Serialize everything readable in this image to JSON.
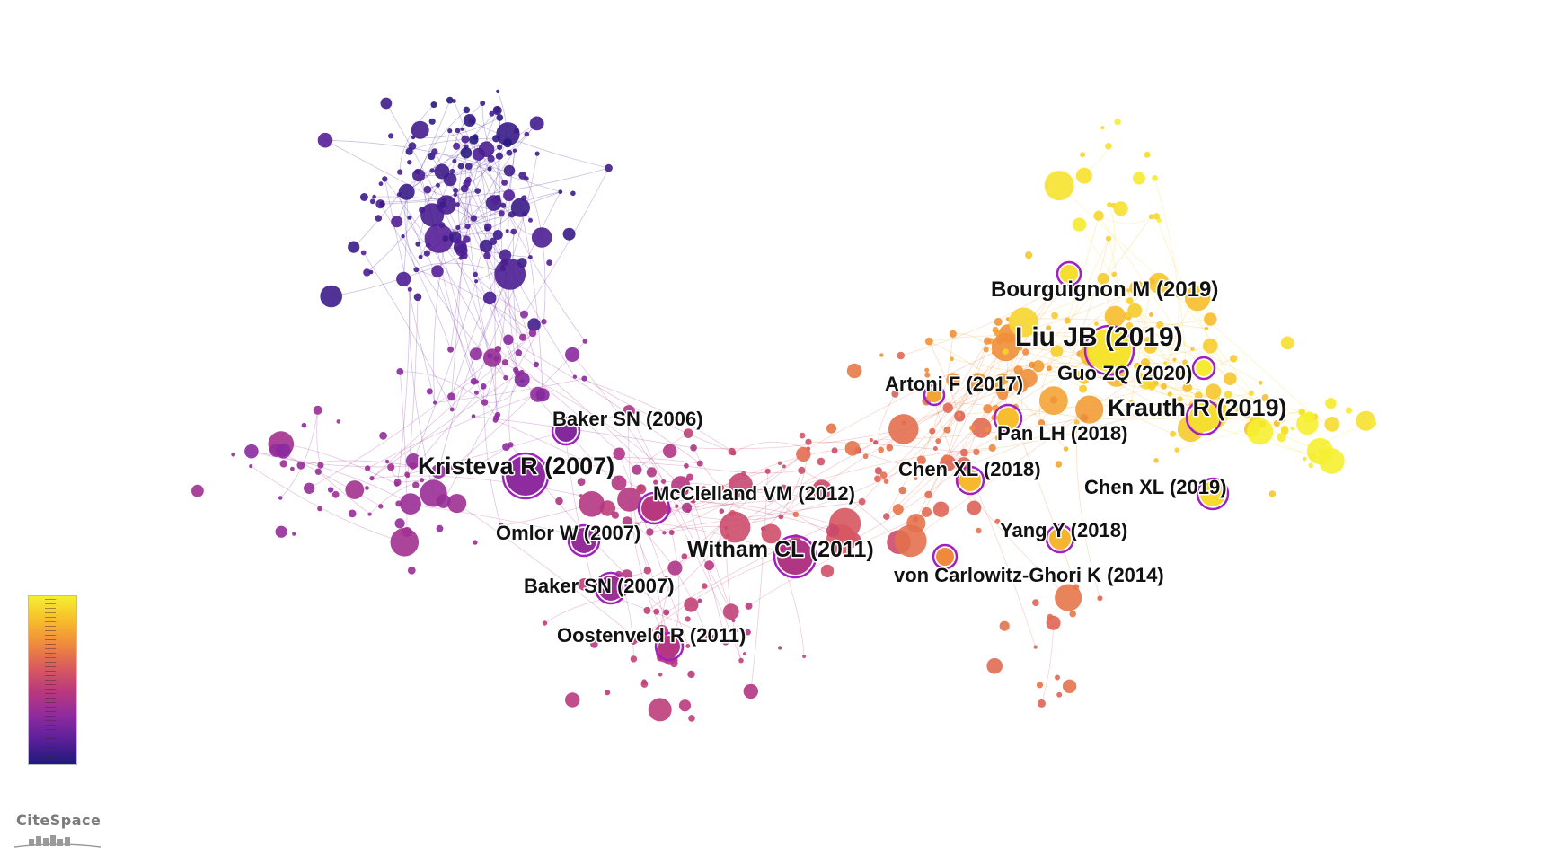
{
  "network": {
    "labels": [
      {
        "id": "bourguignon",
        "text": "Bourguignon M (2019)",
        "year": 2019,
        "size": "medium"
      },
      {
        "id": "liu",
        "text": "Liu JB (2019)",
        "year": 2019,
        "size": "xlarge"
      },
      {
        "id": "artoni",
        "text": "Artoni F (2017)",
        "year": 2017,
        "size": "small"
      },
      {
        "id": "guo",
        "text": "Guo ZQ (2020)",
        "year": 2020,
        "size": "small"
      },
      {
        "id": "krauth",
        "text": "Krauth R (2019)",
        "year": 2019,
        "size": "large"
      },
      {
        "id": "pan",
        "text": "Pan LH (2018)",
        "year": 2018,
        "size": "small"
      },
      {
        "id": "chenxl2018",
        "text": "Chen XL (2018)",
        "year": 2018,
        "size": "small"
      },
      {
        "id": "chenxl2019",
        "text": "Chen XL (2019)",
        "year": 2019,
        "size": "small"
      },
      {
        "id": "yang",
        "text": "Yang Y (2018)",
        "year": 2018,
        "size": "small"
      },
      {
        "id": "vonc",
        "text": "von Carlowitz-Ghori K (2014)",
        "year": 2014,
        "size": "small"
      },
      {
        "id": "bakersn2006",
        "text": "Baker SN (2006)",
        "year": 2006,
        "size": "small"
      },
      {
        "id": "kristeva",
        "text": "Kristeva R (2007)",
        "year": 2007,
        "size": "large"
      },
      {
        "id": "mcclelland",
        "text": "McClelland VM (2012)",
        "year": 2012,
        "size": "small"
      },
      {
        "id": "omlor",
        "text": "Omlor W (2007)",
        "year": 2007,
        "size": "small"
      },
      {
        "id": "witham",
        "text": "Witham CL (2011)",
        "year": 2011,
        "size": "medium"
      },
      {
        "id": "bakersn2007",
        "text": "Baker SN (2007)",
        "year": 2007,
        "size": "small"
      },
      {
        "id": "oostenveld",
        "text": "Oostenveld R (2011)",
        "year": 2011,
        "size": "small"
      }
    ]
  },
  "legend": {
    "type": "color-scale",
    "min_year": 2000,
    "max_year": 2022,
    "colors": [
      "#1f1a7a",
      "#5a1f9a",
      "#8e2b9e",
      "#b8387f",
      "#d95a5e",
      "#ef8a3c",
      "#f7bd2c",
      "#f5ef30"
    ]
  },
  "logo": {
    "text": "CiteSpace"
  },
  "colors": {
    "background": "#ffffff",
    "label_text": "#111111"
  }
}
